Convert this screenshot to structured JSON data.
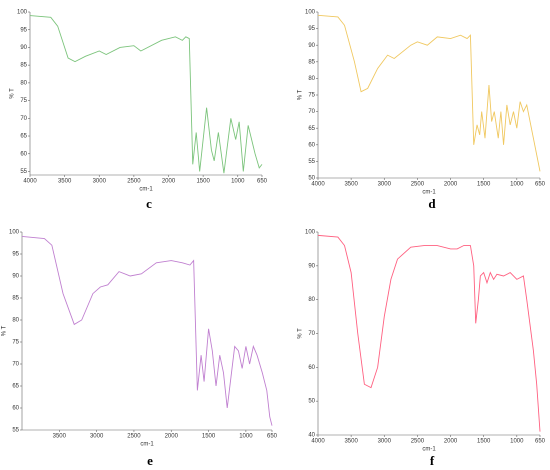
{
  "chart_data": [
    {
      "type": "line",
      "title": "c",
      "x_label": "cm-1",
      "y_label": "% T",
      "color": "#7cc47c",
      "xlim": [
        4000,
        650
      ],
      "ylim": [
        54,
        100
      ],
      "xticks": [
        4000,
        3500,
        3000,
        2500,
        2000,
        1500,
        1000,
        650
      ],
      "yticks": [
        55,
        60,
        65,
        70,
        75,
        80,
        85,
        90,
        95,
        100
      ],
      "x": [
        4000,
        3700,
        3600,
        3450,
        3350,
        3200,
        3000,
        2900,
        2700,
        2500,
        2400,
        2100,
        1900,
        1800,
        1750,
        1700,
        1650,
        1600,
        1550,
        1450,
        1380,
        1340,
        1280,
        1200,
        1100,
        1030,
        980,
        920,
        850,
        750,
        690,
        650
      ],
      "values": [
        99,
        98.5,
        96,
        87,
        86,
        87.5,
        89,
        88,
        90,
        90.5,
        89,
        92,
        93,
        92,
        93,
        92.5,
        57,
        66,
        55,
        73,
        61,
        58,
        66,
        54.5,
        70,
        64,
        69,
        55,
        68,
        60,
        56,
        57
      ]
    },
    {
      "type": "line",
      "title": "d",
      "x_label": "cm-1",
      "y_label": "% T",
      "color": "#f0c860",
      "xlim": [
        4000,
        650
      ],
      "ylim": [
        50,
        100
      ],
      "xticks": [
        4000,
        3500,
        3000,
        2500,
        2000,
        1500,
        1000,
        650
      ],
      "yticks": [
        50,
        55,
        60,
        65,
        70,
        75,
        80,
        85,
        90,
        95,
        100
      ],
      "x": [
        4000,
        3700,
        3600,
        3450,
        3350,
        3250,
        3100,
        2950,
        2850,
        2600,
        2500,
        2350,
        2200,
        2000,
        1850,
        1750,
        1700,
        1650,
        1600,
        1560,
        1530,
        1480,
        1420,
        1380,
        1340,
        1280,
        1240,
        1200,
        1150,
        1100,
        1050,
        1000,
        950,
        900,
        850,
        760,
        700,
        650
      ],
      "values": [
        99,
        98.5,
        96,
        85,
        76,
        77,
        83,
        87,
        86,
        90,
        91,
        90,
        92.5,
        92,
        93,
        92,
        93,
        60,
        66,
        63,
        70,
        62,
        78,
        67,
        70,
        62,
        70,
        60,
        72,
        66,
        70,
        65,
        73,
        70,
        72,
        63,
        57,
        52
      ]
    },
    {
      "type": "line",
      "title": "e",
      "x_label": "cm-1",
      "y_label": "% T",
      "color": "#c080d0",
      "xlim": [
        4000,
        650
      ],
      "ylim": [
        55,
        100
      ],
      "xticks": [
        3500,
        3000,
        2500,
        2000,
        1500,
        1000,
        650
      ],
      "yticks": [
        55,
        60,
        65,
        70,
        75,
        80,
        85,
        90,
        95,
        100
      ],
      "x": [
        4000,
        3700,
        3600,
        3450,
        3300,
        3200,
        3050,
        2950,
        2850,
        2700,
        2550,
        2400,
        2200,
        2000,
        1850,
        1750,
        1700,
        1650,
        1600,
        1560,
        1500,
        1450,
        1400,
        1350,
        1300,
        1250,
        1200,
        1150,
        1100,
        1050,
        1000,
        950,
        900,
        850,
        780,
        720,
        680,
        650
      ],
      "values": [
        99,
        98.5,
        97,
        86,
        79,
        80,
        86,
        87.5,
        88,
        91,
        90,
        90.5,
        93,
        93.5,
        93,
        92.5,
        93.5,
        64,
        72,
        66,
        78,
        73,
        65,
        72,
        68,
        60,
        67,
        74,
        73,
        69,
        74,
        70,
        74,
        72,
        68,
        64,
        58,
        56
      ]
    },
    {
      "type": "line",
      "title": "f",
      "x_label": "cm-1",
      "y_label": "% T",
      "color": "#ff6080",
      "xlim": [
        4000,
        650
      ],
      "ylim": [
        40,
        100
      ],
      "xticks": [
        4000,
        3500,
        3000,
        2500,
        2000,
        1500,
        1000,
        650
      ],
      "yticks": [
        40,
        50,
        60,
        70,
        80,
        90,
        100
      ],
      "x": [
        4000,
        3700,
        3600,
        3500,
        3400,
        3300,
        3200,
        3100,
        3000,
        2900,
        2800,
        2600,
        2400,
        2200,
        2000,
        1900,
        1800,
        1700,
        1650,
        1620,
        1580,
        1550,
        1500,
        1450,
        1400,
        1350,
        1300,
        1200,
        1100,
        1000,
        900,
        850,
        750,
        700,
        650
      ],
      "values": [
        99,
        98.5,
        96,
        88,
        70,
        55,
        54,
        60,
        75,
        86,
        92,
        95.5,
        96,
        96,
        95,
        95,
        96,
        96,
        90,
        73,
        80,
        87,
        88,
        85,
        88,
        86,
        87.5,
        87,
        88,
        86,
        87,
        80,
        65,
        55,
        41
      ]
    }
  ]
}
